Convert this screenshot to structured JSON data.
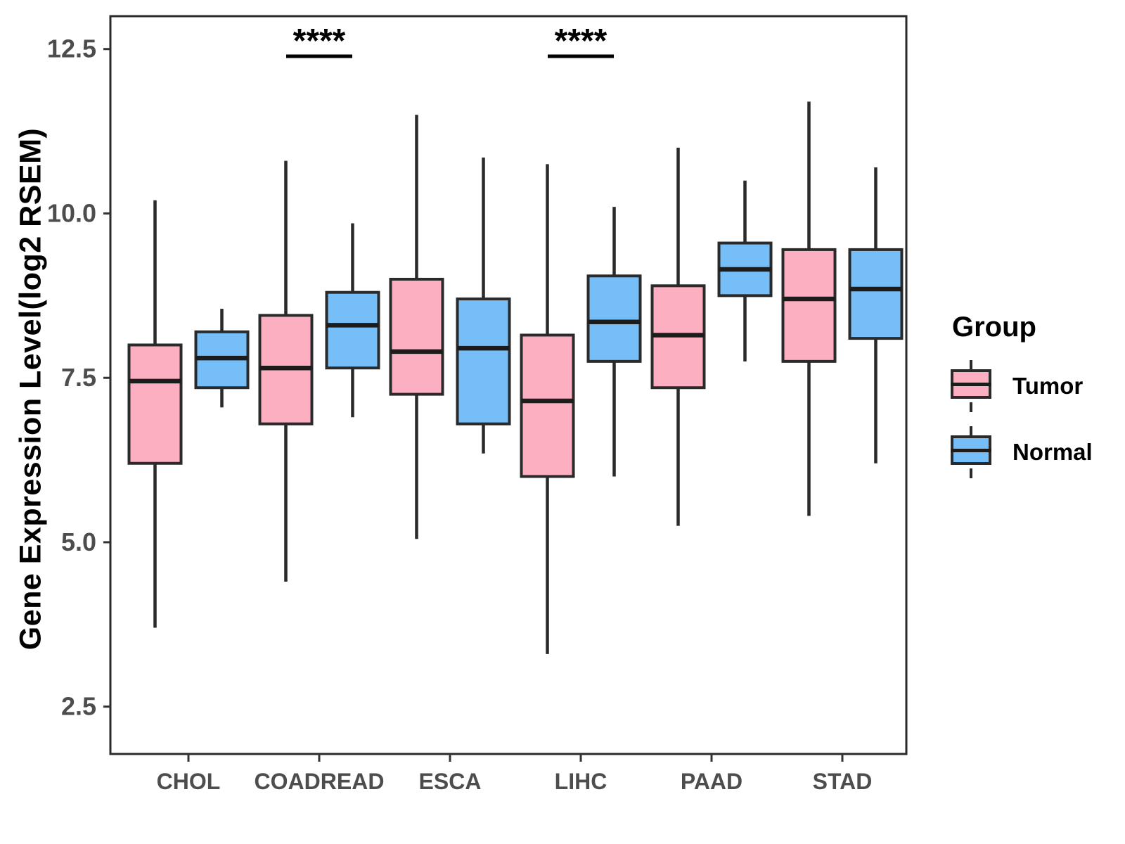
{
  "figure": {
    "background": "#ffffff",
    "panel_border_color": "#2a2a2a",
    "y_axis": {
      "title": "Gene Expression Level(log2 RSEM)",
      "tick_labels": [
        "2.5",
        "5.0",
        "7.5",
        "10.0",
        "12.5"
      ],
      "tick_values": [
        2.5,
        5.0,
        7.5,
        10.0,
        12.5
      ],
      "tick_label_color": "#4d4d4d"
    },
    "x_axis": {
      "tick_labels": [
        "CHOL",
        "COADREAD",
        "ESCA",
        "LIHC",
        "PAAD",
        "STAD"
      ],
      "tick_label_color": "#4d4d4d"
    },
    "legend": {
      "title": "Group",
      "items": [
        {
          "label": "Tumor"
        },
        {
          "label": "Normal"
        }
      ]
    }
  },
  "chart_data": {
    "type": "boxplot",
    "title": "",
    "xlabel": "",
    "ylabel": "Gene Expression Level(log2 RSEM)",
    "ylim": [
      1.78,
      13.0
    ],
    "yticks": [
      2.5,
      5.0,
      7.5,
      10.0,
      12.5
    ],
    "ytick_labels": [
      "2.5",
      "5.0",
      "7.5",
      "10.0",
      "12.5"
    ],
    "grid": false,
    "legend_position": "right",
    "categories": [
      "CHOL",
      "COADREAD",
      "ESCA",
      "LIHC",
      "PAAD",
      "STAD"
    ],
    "series": [
      {
        "name": "Tumor",
        "color": "#FCAFC1",
        "stroke": "#2a2a2a",
        "boxes": [
          {
            "category": "CHOL",
            "min": 3.7,
            "q1": 6.2,
            "median": 7.45,
            "q3": 8.0,
            "max": 10.2
          },
          {
            "category": "COADREAD",
            "min": 4.4,
            "q1": 6.8,
            "median": 7.65,
            "q3": 8.45,
            "max": 10.8
          },
          {
            "category": "ESCA",
            "min": 5.05,
            "q1": 7.25,
            "median": 7.9,
            "q3": 9.0,
            "max": 11.5
          },
          {
            "category": "LIHC",
            "min": 3.3,
            "q1": 6.0,
            "median": 7.15,
            "q3": 8.15,
            "max": 10.75
          },
          {
            "category": "PAAD",
            "min": 5.25,
            "q1": 7.35,
            "median": 8.15,
            "q3": 8.9,
            "max": 11.0
          },
          {
            "category": "STAD",
            "min": 5.4,
            "q1": 7.75,
            "median": 8.7,
            "q3": 9.45,
            "max": 11.7
          }
        ]
      },
      {
        "name": "Normal",
        "color": "#75BEF7",
        "stroke": "#2a2a2a",
        "boxes": [
          {
            "category": "CHOL",
            "min": 7.05,
            "q1": 7.35,
            "median": 7.8,
            "q3": 8.2,
            "max": 8.55
          },
          {
            "category": "COADREAD",
            "min": 6.9,
            "q1": 7.65,
            "median": 8.3,
            "q3": 8.8,
            "max": 9.85
          },
          {
            "category": "ESCA",
            "min": 6.35,
            "q1": 6.8,
            "median": 7.95,
            "q3": 8.7,
            "max": 10.85
          },
          {
            "category": "LIHC",
            "min": 6.0,
            "q1": 7.75,
            "median": 8.35,
            "q3": 9.05,
            "max": 10.1
          },
          {
            "category": "PAAD",
            "min": 7.75,
            "q1": 8.75,
            "median": 9.15,
            "q3": 9.55,
            "max": 10.5
          },
          {
            "category": "STAD",
            "min": 6.2,
            "q1": 8.1,
            "median": 8.85,
            "q3": 9.45,
            "max": 10.7
          }
        ]
      }
    ],
    "annotations": [
      {
        "category": "COADREAD",
        "label": "****"
      },
      {
        "category": "LIHC",
        "label": "****"
      }
    ]
  }
}
